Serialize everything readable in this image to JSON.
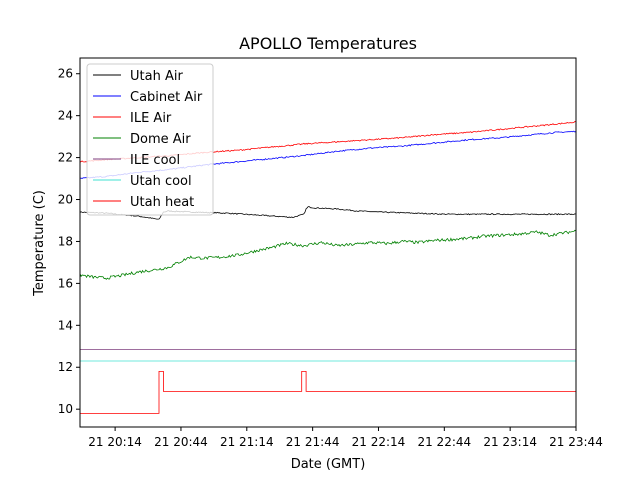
{
  "chart_data": {
    "type": "line",
    "title": "APOLLO Temperatures",
    "xlabel": "Date (GMT)",
    "ylabel": "Temperature (C)",
    "x_unit": "minutes since 21 20:00 GMT",
    "xlim": [
      -2,
      224
    ],
    "ylim": [
      9.15,
      26.75
    ],
    "grid": false,
    "legend_position": "top-left",
    "x_ticks": [
      {
        "value": 14,
        "label": "21 20:14"
      },
      {
        "value": 44,
        "label": "21 20:44"
      },
      {
        "value": 74,
        "label": "21 21:14"
      },
      {
        "value": 104,
        "label": "21 21:44"
      },
      {
        "value": 134,
        "label": "21 22:14"
      },
      {
        "value": 164,
        "label": "21 22:44"
      },
      {
        "value": 194,
        "label": "21 23:14"
      },
      {
        "value": 224,
        "label": "21 23:44"
      }
    ],
    "y_ticks": [
      {
        "value": 10,
        "label": "10"
      },
      {
        "value": 12,
        "label": "12"
      },
      {
        "value": 14,
        "label": "14"
      },
      {
        "value": 16,
        "label": "16"
      },
      {
        "value": 18,
        "label": "18"
      },
      {
        "value": 20,
        "label": "20"
      },
      {
        "value": 22,
        "label": "22"
      },
      {
        "value": 24,
        "label": "24"
      },
      {
        "value": 26,
        "label": "26"
      }
    ],
    "series": [
      {
        "name": "Utah Air",
        "color": "#000000",
        "step": false,
        "x": [
          -2,
          10,
          25,
          34,
          36,
          38,
          50,
          65,
          80,
          95,
          100,
          101,
          102,
          105,
          115,
          125,
          135,
          150,
          165,
          180,
          195,
          210,
          224
        ],
        "y": [
          19.4,
          19.35,
          19.2,
          19.05,
          19.4,
          19.45,
          19.4,
          19.35,
          19.25,
          19.15,
          19.3,
          19.55,
          19.65,
          19.6,
          19.55,
          19.45,
          19.4,
          19.35,
          19.3,
          19.3,
          19.3,
          19.3,
          19.3
        ]
      },
      {
        "name": "Cabinet Air",
        "color": "#0000ff",
        "step": false,
        "x": [
          -2,
          10,
          25,
          40,
          55,
          70,
          85,
          100,
          115,
          130,
          145,
          160,
          175,
          190,
          205,
          215,
          224
        ],
        "y": [
          21.0,
          21.1,
          21.3,
          21.45,
          21.65,
          21.8,
          21.95,
          22.1,
          22.3,
          22.45,
          22.55,
          22.7,
          22.85,
          22.95,
          23.1,
          23.2,
          23.25
        ]
      },
      {
        "name": "ILE Air",
        "color": "#ff0000",
        "step": false,
        "x": [
          -2,
          10,
          25,
          40,
          55,
          70,
          85,
          100,
          115,
          130,
          145,
          160,
          175,
          190,
          205,
          215,
          224
        ],
        "y": [
          21.8,
          21.9,
          22.0,
          22.1,
          22.25,
          22.35,
          22.5,
          22.65,
          22.75,
          22.85,
          22.95,
          23.1,
          23.2,
          23.35,
          23.5,
          23.6,
          23.7
        ]
      },
      {
        "name": "Dome Air",
        "color": "#008000",
        "step": false,
        "x": [
          -2,
          4,
          10,
          18,
          25,
          32,
          38,
          44,
          48,
          55,
          62,
          70,
          78,
          85,
          92,
          100,
          108,
          115,
          122,
          130,
          138,
          145,
          152,
          160,
          168,
          175,
          182,
          190,
          198,
          206,
          212,
          218,
          224
        ],
        "y": [
          16.4,
          16.3,
          16.25,
          16.4,
          16.55,
          16.65,
          16.75,
          17.05,
          17.25,
          17.2,
          17.25,
          17.35,
          17.55,
          17.7,
          17.9,
          17.8,
          17.95,
          17.8,
          17.85,
          17.95,
          17.9,
          18.0,
          17.95,
          18.05,
          18.1,
          18.15,
          18.25,
          18.3,
          18.35,
          18.45,
          18.3,
          18.4,
          18.5
        ]
      },
      {
        "name": "ILE cool",
        "color": "#7f3f7f",
        "step": false,
        "x": [
          -2,
          224
        ],
        "y": [
          12.85,
          12.85
        ]
      },
      {
        "name": "Utah cool",
        "color": "#40e0d0",
        "step": false,
        "x": [
          -2,
          224
        ],
        "y": [
          12.3,
          12.3
        ]
      },
      {
        "name": "Utah heat",
        "color": "#ff0000",
        "step": true,
        "x": [
          -2,
          34,
          36,
          99,
          101,
          224
        ],
        "y": [
          9.8,
          11.8,
          10.85,
          11.8,
          10.85,
          10.85
        ]
      }
    ]
  }
}
